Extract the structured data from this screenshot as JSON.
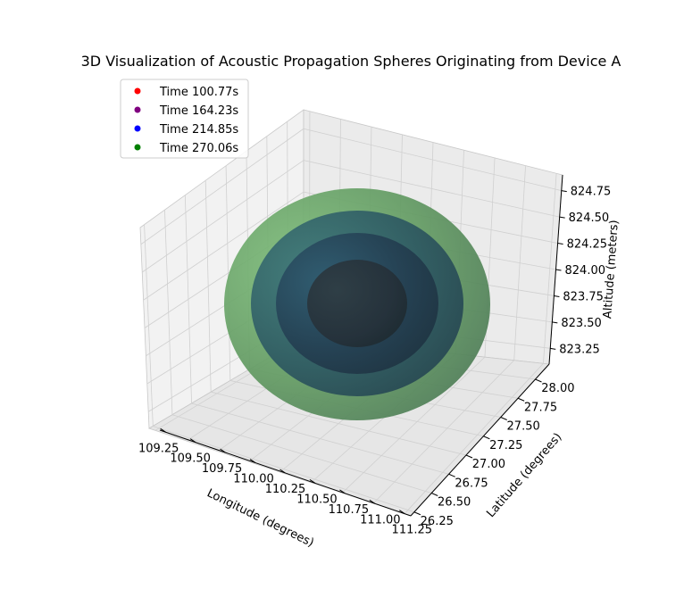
{
  "chart_data": {
    "type": "scatter",
    "title": "3D Visualization of Acoustic Propagation Spheres Originating from Device A",
    "xlabel": "Longitude (degrees)",
    "ylabel": "Latitude (degrees)",
    "zlabel": "Altitude (meters)",
    "x_ticks": [
      "109.25",
      "109.50",
      "109.75",
      "110.00",
      "110.25",
      "110.50",
      "110.75",
      "111.00",
      "111.25"
    ],
    "y_ticks": [
      "26.25",
      "26.50",
      "26.75",
      "27.00",
      "27.25",
      "27.50",
      "27.75",
      "28.00"
    ],
    "z_ticks": [
      "823.25",
      "823.50",
      "823.75",
      "824.00",
      "824.25",
      "824.50",
      "824.75"
    ],
    "xlim": [
      109.2,
      111.3
    ],
    "ylim": [
      26.2,
      28.2
    ],
    "zlim": [
      823.1,
      824.9
    ],
    "legend_position": "upper-left",
    "grid": true,
    "series": [
      {
        "name": "Time 100.77s",
        "color": "#ff0000",
        "value": 100.77,
        "sphere_color": "#2a2a2a",
        "radius_deg": 0.55
      },
      {
        "name": "Time 164.23s",
        "color": "#800080",
        "value": 164.23,
        "sphere_color": "#1f3d55",
        "radius_deg": 0.9
      },
      {
        "name": "Time 214.85s",
        "color": "#0000ff",
        "value": 214.85,
        "sphere_color": "#2a5a6a",
        "radius_deg": 1.17
      },
      {
        "name": "Time 270.06s",
        "color": "#008000",
        "value": 270.06,
        "sphere_color": "#5a9a5a",
        "radius_deg": 1.45
      }
    ]
  }
}
